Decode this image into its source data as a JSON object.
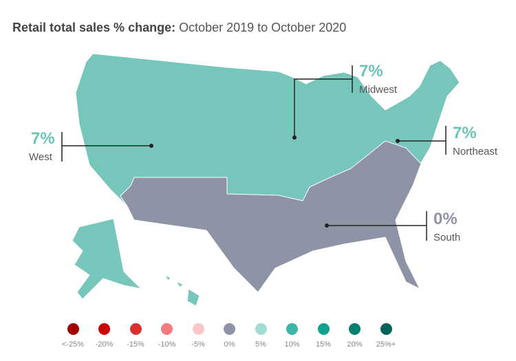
{
  "title": {
    "bold": "Retail total sales % change:",
    "rest": " October 2019 to October 2020"
  },
  "colors": {
    "up": "#77c6bb",
    "flat": "#8e93a6",
    "stroke": "#ffffff"
  },
  "regions": [
    {
      "name": "West",
      "value": "7%",
      "color": "#6cc3b7"
    },
    {
      "name": "Midwest",
      "value": "7%",
      "color": "#6cc3b7"
    },
    {
      "name": "Northeast",
      "value": "7%",
      "color": "#6cc3b7"
    },
    {
      "name": "South",
      "value": "0%",
      "color": "#8e93a6"
    }
  ],
  "legend": [
    {
      "label": "<-25%",
      "color": "#a00000"
    },
    {
      "label": "-20%",
      "color": "#cc0000"
    },
    {
      "label": "-15%",
      "color": "#d93030"
    },
    {
      "label": "-10%",
      "color": "#f47b7b"
    },
    {
      "label": "-5%",
      "color": "#fcc7c7"
    },
    {
      "label": "0%",
      "color": "#8e93a6"
    },
    {
      "label": "5%",
      "color": "#a0dcd4"
    },
    {
      "label": "10%",
      "color": "#3db5a7"
    },
    {
      "label": "15%",
      "color": "#0ca190"
    },
    {
      "label": "20%",
      "color": "#008070"
    },
    {
      "label": "25%+",
      "color": "#00645a"
    }
  ]
}
